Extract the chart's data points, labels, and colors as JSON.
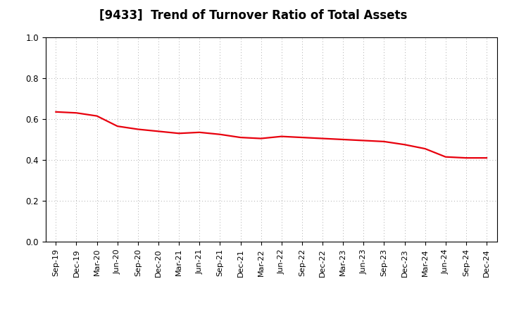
{
  "title": "[9433]  Trend of Turnover Ratio of Total Assets",
  "x_labels": [
    "Sep-19",
    "Dec-19",
    "Mar-20",
    "Jun-20",
    "Sep-20",
    "Dec-20",
    "Mar-21",
    "Jun-21",
    "Sep-21",
    "Dec-21",
    "Mar-22",
    "Jun-22",
    "Sep-22",
    "Dec-22",
    "Mar-23",
    "Jun-23",
    "Sep-23",
    "Dec-23",
    "Mar-24",
    "Jun-24",
    "Sep-24",
    "Dec-24"
  ],
  "y_values": [
    0.635,
    0.63,
    0.615,
    0.565,
    0.55,
    0.54,
    0.53,
    0.535,
    0.525,
    0.51,
    0.505,
    0.515,
    0.51,
    0.505,
    0.5,
    0.495,
    0.49,
    0.475,
    0.455,
    0.415,
    0.41,
    0.41
  ],
  "line_color": "#e8000d",
  "line_width": 1.6,
  "ylim": [
    0.0,
    1.0
  ],
  "yticks": [
    0.0,
    0.2,
    0.4,
    0.6,
    0.8,
    1.0
  ],
  "grid_color": "#aaaaaa",
  "background_color": "#ffffff",
  "title_fontsize": 12,
  "tick_fontsize": 8
}
